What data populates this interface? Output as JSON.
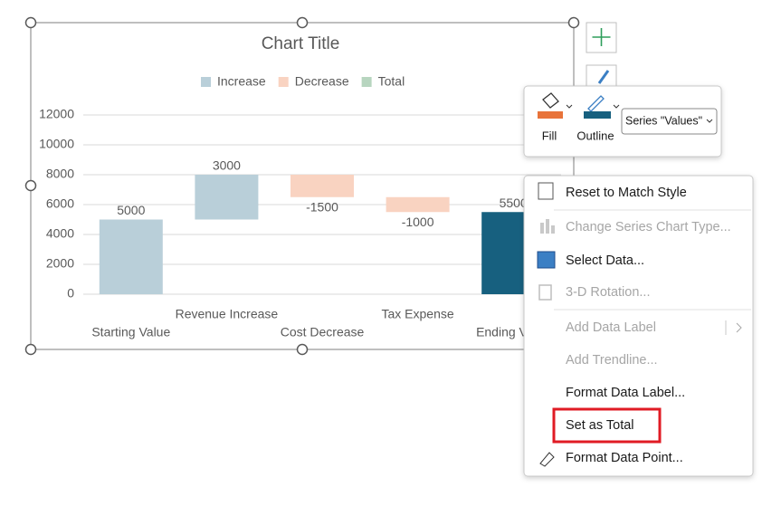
{
  "chart": {
    "type": "waterfall",
    "title": "Chart Title",
    "legend": [
      {
        "name": "Increase",
        "color": "#b9cfd9"
      },
      {
        "name": "Decrease",
        "color": "#f9d3c1"
      },
      {
        "name": "Total",
        "color": "#b7d5bf"
      }
    ],
    "categories": [
      "Starting Value",
      "Revenue Increase",
      "Cost Decrease",
      "Tax Expense",
      "Ending Value"
    ],
    "values": [
      5000,
      3000,
      -1500,
      -1000,
      5500
    ],
    "is_total": [
      false,
      false,
      false,
      false,
      true
    ],
    "bar_colors": {
      "increase": "#b9cfd9",
      "decrease": "#f9d3c1",
      "total": "#17607f"
    },
    "ylim": [
      0,
      12000
    ],
    "yticks": [
      0,
      2000,
      4000,
      6000,
      8000,
      10000,
      12000
    ],
    "grid": true
  },
  "format_toolbar": {
    "fill_label": "Fill",
    "outline_label": "Outline",
    "series_dropdown": "Series \"Values\""
  },
  "context_menu": {
    "items": [
      {
        "label": "Reset to Match Style",
        "enabled": true
      },
      {
        "label": "Change Series Chart Type...",
        "enabled": false
      },
      {
        "label": "Select Data...",
        "enabled": true
      },
      {
        "label": "3-D Rotation...",
        "enabled": false
      },
      {
        "label": "Add Data Label",
        "enabled": false
      },
      {
        "label": "Add Trendline...",
        "enabled": false
      },
      {
        "label": "Format Data Label...",
        "enabled": true
      },
      {
        "label": "Set as Total",
        "enabled": true
      },
      {
        "label": "Format Data Point...",
        "enabled": true
      }
    ],
    "highlighted": 7
  }
}
